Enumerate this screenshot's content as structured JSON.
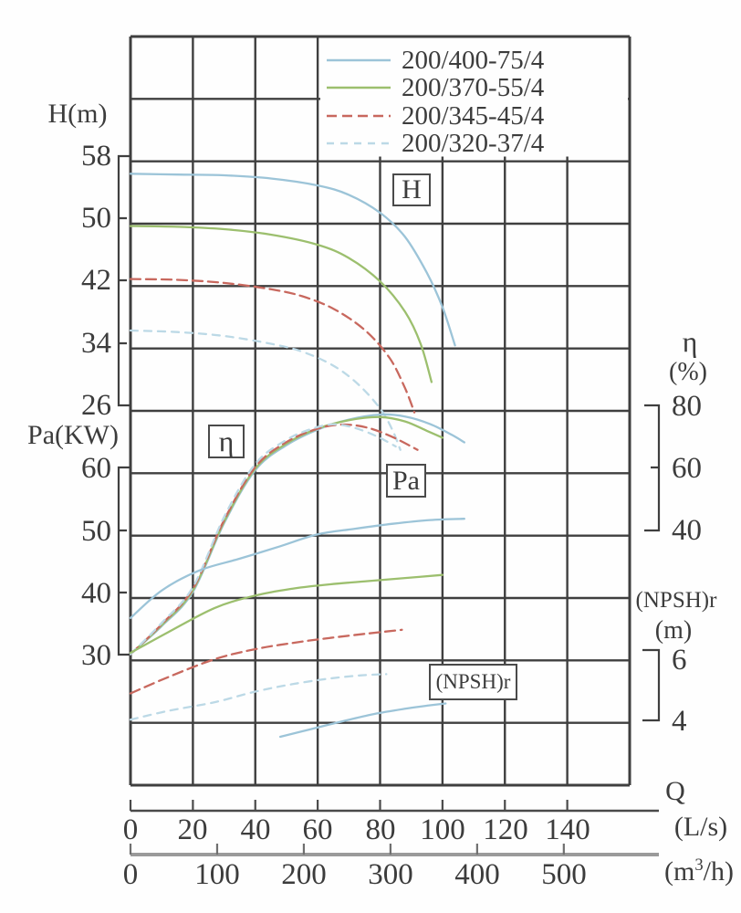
{
  "page": {
    "background": "#ffffff",
    "text_color": "#3c3c3c",
    "grid_color": "#3f3f3f",
    "secondary_axis_color": "#9a9a9a"
  },
  "chart_data": {
    "type": "line",
    "grid": "on",
    "legend_position": "top-right-inside",
    "h_axis": {
      "label": "H(m)",
      "units": "m",
      "ticks": [
        58,
        50,
        42,
        34,
        26
      ]
    },
    "pa_axis": {
      "label": "Pa(KW)",
      "units": "KW",
      "ticks": [
        60,
        50,
        40,
        30
      ]
    },
    "eta_axis": {
      "label": "η",
      "units": "(%)",
      "ticks": [
        80,
        60,
        40
      ]
    },
    "npsh_axis": {
      "label": "(NPSH)r",
      "units": "(m)",
      "ticks": [
        6,
        4
      ]
    },
    "q_axis": {
      "label": "Q",
      "lps_units": "(L/s)",
      "m3h_units": {
        "pre": "(m",
        "sup": "3",
        "post": "/h)"
      },
      "lps_ticks": [
        0,
        20,
        40,
        60,
        80,
        100,
        120,
        140
      ],
      "m3h_ticks": [
        0,
        100,
        200,
        300,
        400,
        500
      ],
      "grid_max_lps": 160
    },
    "curve_labels": {
      "h": "H",
      "eta": "η",
      "pa": "Pa",
      "npsh": "(NPSH)r"
    },
    "pumps": [
      {
        "label": "200/400-75/4",
        "color": "#9cc4d8",
        "dash": "solid"
      },
      {
        "label": "200/370-55/4",
        "color": "#9cbf6e",
        "dash": "solid"
      },
      {
        "label": "200/345-45/4",
        "color": "#c8685e",
        "dash": "dashed"
      },
      {
        "label": "200/320-37/4",
        "color": "#bcd9e6",
        "dash": "dotted"
      }
    ],
    "series": [
      {
        "name": "H 200/400-75/4",
        "axis": "H",
        "pump": 0,
        "points": [
          [
            0,
            56.4
          ],
          [
            15,
            56.3
          ],
          [
            30,
            56.2
          ],
          [
            45,
            55.8
          ],
          [
            60,
            54.9
          ],
          [
            70,
            53.7
          ],
          [
            80,
            51.4
          ],
          [
            88,
            48.3
          ],
          [
            95,
            43.7
          ],
          [
            100,
            39.3
          ],
          [
            104,
            34.4
          ]
        ]
      },
      {
        "name": "H 200/370-55/4",
        "axis": "H",
        "pump": 1,
        "points": [
          [
            0,
            49.7
          ],
          [
            15,
            49.6
          ],
          [
            30,
            49.3
          ],
          [
            45,
            48.6
          ],
          [
            60,
            47.3
          ],
          [
            70,
            45.6
          ],
          [
            80,
            42.6
          ],
          [
            88,
            38.7
          ],
          [
            93,
            34.6
          ],
          [
            96.5,
            29.7
          ]
        ]
      },
      {
        "name": "H 200/345-45/4",
        "axis": "H",
        "pump": 2,
        "points": [
          [
            0,
            42.9
          ],
          [
            15,
            42.8
          ],
          [
            30,
            42.4
          ],
          [
            45,
            41.6
          ],
          [
            55,
            40.7
          ],
          [
            65,
            39.1
          ],
          [
            75,
            36.4
          ],
          [
            83,
            32.8
          ],
          [
            88,
            28.9
          ],
          [
            91,
            25.8
          ]
        ]
      },
      {
        "name": "H 200/320-37/4",
        "axis": "H",
        "pump": 3,
        "points": [
          [
            0,
            36.3
          ],
          [
            15,
            36.1
          ],
          [
            30,
            35.6
          ],
          [
            45,
            34.6
          ],
          [
            55,
            33.6
          ],
          [
            65,
            31.8
          ],
          [
            73,
            29.4
          ],
          [
            80,
            26.3
          ],
          [
            84,
            23.5
          ],
          [
            86.5,
            21.0
          ]
        ]
      },
      {
        "name": "eta 200/400-75/4",
        "axis": "eta",
        "pump": 0,
        "points": [
          [
            0,
            2
          ],
          [
            10,
            11
          ],
          [
            20,
            22
          ],
          [
            30,
            44
          ],
          [
            40,
            61
          ],
          [
            50,
            69
          ],
          [
            60,
            74
          ],
          [
            70,
            77.2
          ],
          [
            80,
            78.8
          ],
          [
            88,
            78.2
          ],
          [
            96,
            75.8
          ],
          [
            103,
            72.3
          ],
          [
            107,
            69.9
          ]
        ]
      },
      {
        "name": "eta 200/370-55/4",
        "axis": "eta",
        "pump": 1,
        "points": [
          [
            0,
            2
          ],
          [
            10,
            11.3
          ],
          [
            20,
            22.5
          ],
          [
            30,
            44.5
          ],
          [
            40,
            61.5
          ],
          [
            50,
            69.5
          ],
          [
            60,
            74.3
          ],
          [
            70,
            77
          ],
          [
            80,
            78
          ],
          [
            88,
            76.6
          ],
          [
            95,
            73.6
          ],
          [
            100,
            71.4
          ]
        ]
      },
      {
        "name": "eta 200/345-45/4",
        "axis": "eta",
        "pump": 2,
        "points": [
          [
            0,
            2
          ],
          [
            10,
            11.6
          ],
          [
            20,
            23
          ],
          [
            30,
            45
          ],
          [
            40,
            62
          ],
          [
            50,
            70
          ],
          [
            60,
            74.3
          ],
          [
            68,
            75.6
          ],
          [
            76,
            74.6
          ],
          [
            84,
            71.6
          ],
          [
            92,
            67.5
          ]
        ]
      },
      {
        "name": "eta 200/320-37/4",
        "axis": "eta",
        "pump": 3,
        "points": [
          [
            0,
            2
          ],
          [
            10,
            12
          ],
          [
            20,
            23.5
          ],
          [
            30,
            46
          ],
          [
            40,
            63
          ],
          [
            50,
            70.7
          ],
          [
            58,
            74.2
          ],
          [
            65,
            75.7
          ],
          [
            72,
            74.5
          ],
          [
            79,
            71.8
          ],
          [
            85,
            68.6
          ]
        ]
      },
      {
        "name": "Pa 200/400-75/4",
        "axis": "Pa",
        "pump": 0,
        "points": [
          [
            0,
            36.8
          ],
          [
            10,
            41.2
          ],
          [
            22,
            44.4
          ],
          [
            35,
            46.3
          ],
          [
            48,
            48.3
          ],
          [
            60,
            50.2
          ],
          [
            72,
            51.1
          ],
          [
            84,
            51.9
          ],
          [
            96,
            52.5
          ],
          [
            107,
            52.7
          ]
        ]
      },
      {
        "name": "Pa 200/370-55/4",
        "axis": "Pa",
        "pump": 1,
        "points": [
          [
            0,
            31.2
          ],
          [
            12,
            34.5
          ],
          [
            27,
            38.4
          ],
          [
            40,
            40.4
          ],
          [
            52,
            41.5
          ],
          [
            64,
            42.2
          ],
          [
            76,
            42.7
          ],
          [
            88,
            43.2
          ],
          [
            100,
            43.7
          ]
        ]
      },
      {
        "name": "Pa 200/345-45/4",
        "axis": "Pa",
        "pump": 2,
        "points": [
          [
            0,
            24.7
          ],
          [
            12,
            27.3
          ],
          [
            27,
            30.2
          ],
          [
            40,
            31.8
          ],
          [
            52,
            32.8
          ],
          [
            64,
            33.6
          ],
          [
            76,
            34.3
          ],
          [
            87,
            34.9
          ]
        ]
      },
      {
        "name": "Pa 200/320-37/4",
        "axis": "Pa",
        "pump": 3,
        "points": [
          [
            0,
            20.5
          ],
          [
            12,
            21.9
          ],
          [
            27,
            23.3
          ],
          [
            40,
            25.0
          ],
          [
            52,
            26.2
          ],
          [
            64,
            27.1
          ],
          [
            74,
            27.6
          ],
          [
            82,
            27.8
          ]
        ]
      },
      {
        "name": "(NPSH)r",
        "axis": "npsh",
        "pump": 0,
        "points": [
          [
            48,
            3.55
          ],
          [
            58,
            3.8
          ],
          [
            68,
            4.05
          ],
          [
            78,
            4.28
          ],
          [
            88,
            4.45
          ],
          [
            96,
            4.56
          ],
          [
            101,
            4.62
          ]
        ]
      }
    ]
  }
}
